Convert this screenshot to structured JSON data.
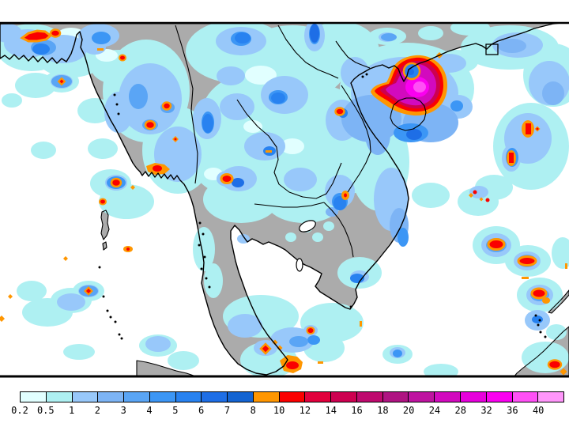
{
  "legend": {
    "labels": [
      "0.2",
      "0.5",
      "1",
      "2",
      "3",
      "4",
      "5",
      "6",
      "7",
      "8",
      "10",
      "12",
      "14",
      "16",
      "18",
      "20",
      "24",
      "28",
      "32",
      "36",
      "40"
    ],
    "colors": [
      "#E1FFFF",
      "#AEF0F2",
      "#98C8FA",
      "#7DB4F5",
      "#5AA5F5",
      "#3C96F5",
      "#2882F0",
      "#1E6EE6",
      "#1464D2",
      "#FF9600",
      "#FA0000",
      "#E1003C",
      "#CD0050",
      "#BE0A6E",
      "#AF1482",
      "#BE14A0",
      "#D20ABE",
      "#E600DC",
      "#FA00F0",
      "#FF50F5",
      "#FF96FA"
    ],
    "border_color": "#000000",
    "text_color": "#000000"
  },
  "map": {
    "ocean_color": "#FFFFFF",
    "land_color": "#ABABAB",
    "coastline_color": "#000000",
    "frame_color": "#000000"
  }
}
